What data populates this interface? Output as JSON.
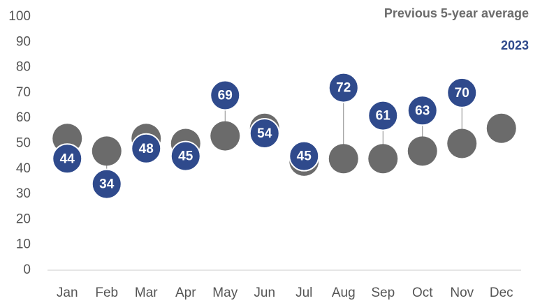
{
  "chart_data": {
    "type": "dot",
    "categories": [
      "Jan",
      "Feb",
      "Mar",
      "Apr",
      "May",
      "Jun",
      "Jul",
      "Aug",
      "Sep",
      "Oct",
      "Nov",
      "Dec"
    ],
    "series": [
      {
        "name": "Previous 5-year average",
        "color": "#6b6b6b",
        "values": [
          52,
          47,
          52,
          50,
          53,
          56,
          43,
          44,
          44,
          47,
          50,
          56
        ]
      },
      {
        "name": "2023",
        "color": "#2f4a8c",
        "values": [
          44,
          34,
          48,
          45,
          69,
          54,
          45,
          72,
          61,
          63,
          70,
          null
        ]
      }
    ],
    "ylim": [
      0,
      100
    ],
    "yticks": [
      0,
      10,
      20,
      30,
      40,
      50,
      60,
      70,
      80,
      90,
      100
    ],
    "legend": "top-right",
    "grid": false
  }
}
